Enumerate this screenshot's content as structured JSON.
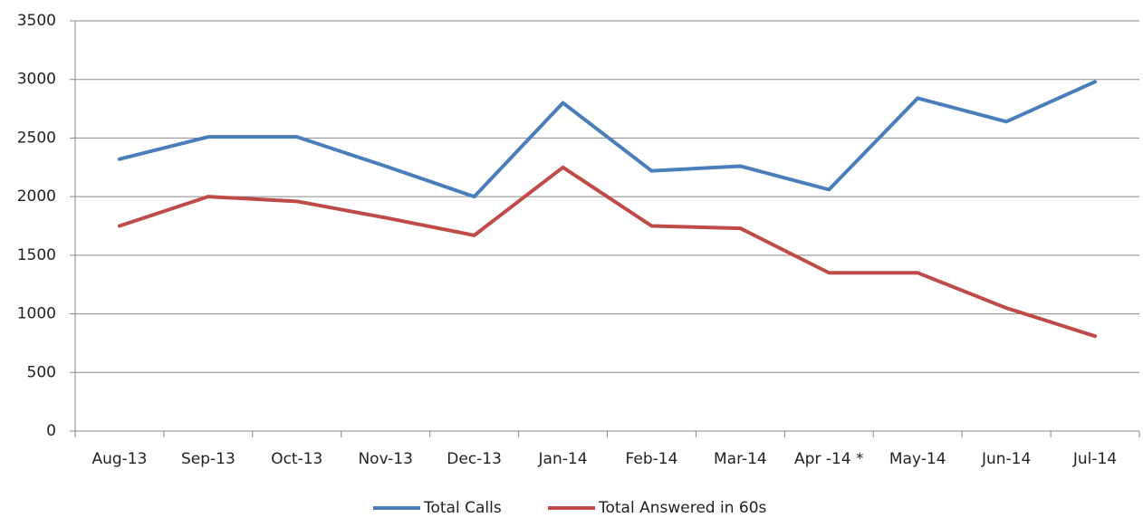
{
  "chart_data": {
    "type": "line",
    "categories": [
      "Aug-13",
      "Sep-13",
      "Oct-13",
      "Nov-13",
      "Dec-13",
      "Jan-14",
      "Feb-14",
      "Mar-14",
      "Apr -14  *",
      "May-14",
      "Jun-14",
      "Jul-14"
    ],
    "series": [
      {
        "name": "Total Calls",
        "color": "#4a7ebb",
        "values": [
          2320,
          2510,
          2510,
          2260,
          2000,
          2800,
          2220,
          2260,
          2060,
          2840,
          2640,
          2980
        ]
      },
      {
        "name": "Total Answered in 60s",
        "color": "#be4b48",
        "values": [
          1750,
          2000,
          1960,
          1820,
          1670,
          2250,
          1750,
          1730,
          1350,
          1350,
          1050,
          810
        ]
      }
    ],
    "ylim": [
      0,
      3500
    ],
    "yticks": [
      0,
      500,
      1000,
      1500,
      2000,
      2500,
      3000,
      3500
    ],
    "grid": true,
    "legend": "bottom"
  }
}
